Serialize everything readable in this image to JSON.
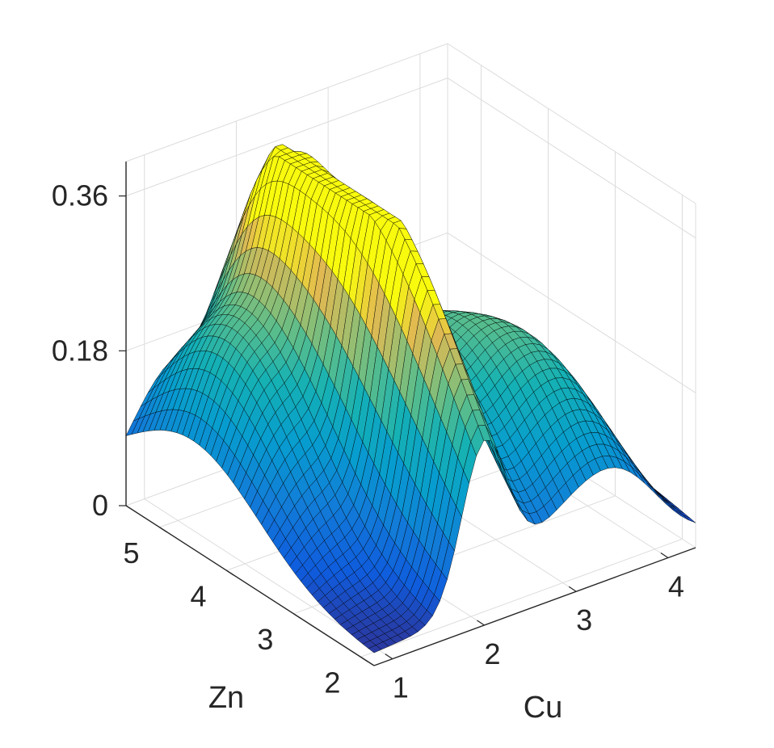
{
  "chart_data": {
    "type": "surface",
    "title": "",
    "xlabel": "Cu",
    "ylabel": "Zn",
    "zlabel": "",
    "xlim": [
      0.8,
      4.3
    ],
    "ylim": [
      1.8,
      5.5
    ],
    "zlim": [
      0,
      0.4
    ],
    "x_ticks": [
      "1",
      "2",
      "3",
      "4"
    ],
    "y_ticks": [
      "2",
      "3",
      "4",
      "5"
    ],
    "z_ticks": [
      "0",
      "0.18",
      "0.36"
    ],
    "grid": true,
    "colormap": "parula",
    "mesh_edge_color": "#000000",
    "background": "#ffffff",
    "grid_color": "#dcdcdc",
    "peaks": [
      {
        "cu": 2.0,
        "zn": 3.4,
        "z": 0.325,
        "sigma_cu": 0.25,
        "sigma_zn": 1.5
      },
      {
        "cu": 1.3,
        "zn": 4.5,
        "z": 0.21,
        "sigma_cu": 0.45,
        "sigma_zn": 1.0
      },
      {
        "cu": 2.7,
        "zn": 3.6,
        "z": 0.175,
        "sigma_cu": 0.45,
        "sigma_zn": 1.2
      },
      {
        "cu": 3.45,
        "zn": 2.9,
        "z": 0.165,
        "sigma_cu": 0.45,
        "sigma_zn": 1.1
      },
      {
        "cu": 2.4,
        "zn": 5.0,
        "z": 0.15,
        "sigma_cu": 0.5,
        "sigma_zn": 0.5
      }
    ]
  }
}
